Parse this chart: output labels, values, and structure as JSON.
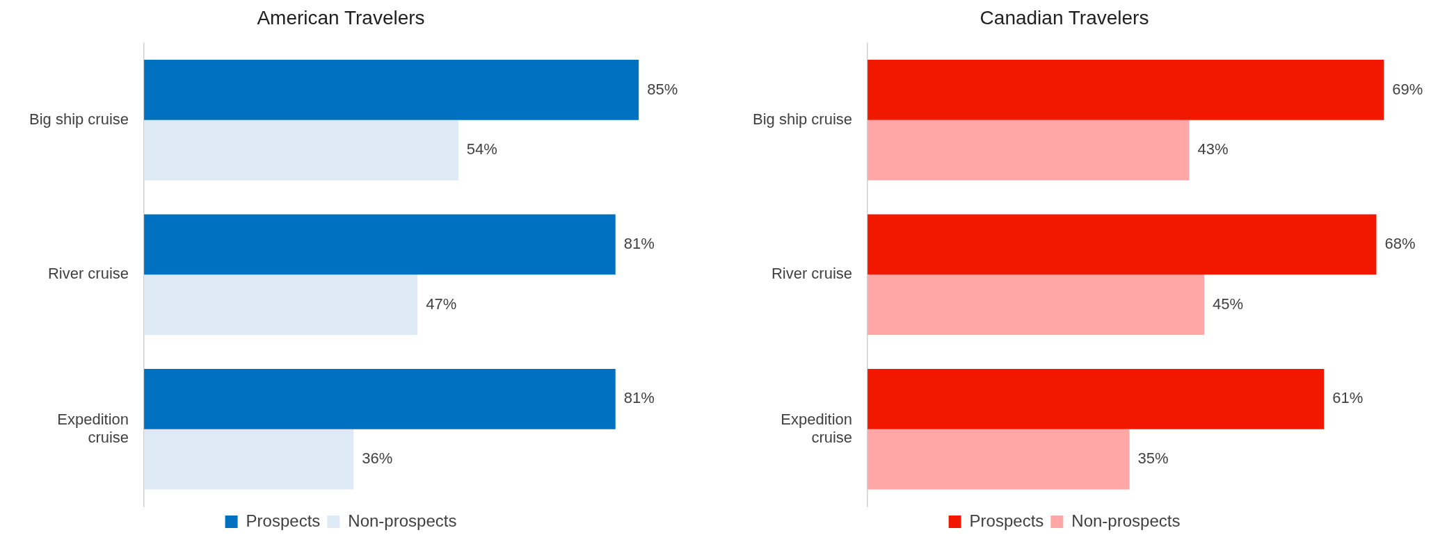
{
  "chart_data": [
    {
      "type": "bar",
      "orientation": "horizontal",
      "title": "American Travelers",
      "categories": [
        "Big ship cruise",
        "River cruise",
        "Expedition cruise"
      ],
      "legend": "bottom",
      "series": [
        {
          "name": "Prospects",
          "color": "#0070c0",
          "values": [
            85,
            81,
            81
          ],
          "value_labels": [
            "85%",
            "81%",
            "81%"
          ]
        },
        {
          "name": "Non-prospects",
          "color": "#dde9f5",
          "values": [
            54,
            47,
            36
          ],
          "value_labels": [
            "54%",
            "47%",
            "36%"
          ]
        }
      ]
    },
    {
      "type": "bar",
      "orientation": "horizontal",
      "title": "Canadian Travelers",
      "categories": [
        "Big ship cruise",
        "River cruise",
        "Expedition cruise"
      ],
      "legend": "bottom",
      "series": [
        {
          "name": "Prospects",
          "color": "#f21800",
          "values": [
            69,
            68,
            61
          ],
          "value_labels": [
            "69%",
            "68%",
            "61%"
          ]
        },
        {
          "name": "Non-prospects",
          "color": "#ffa6a6",
          "values": [
            43,
            45,
            35
          ],
          "value_labels": [
            "43%",
            "45%",
            "35%"
          ]
        }
      ]
    }
  ]
}
